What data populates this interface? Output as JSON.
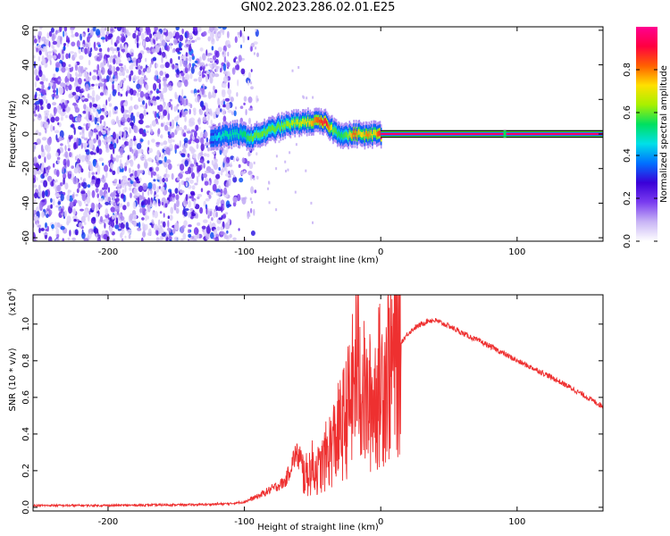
{
  "title": "GN02.2023.286.02.01.E25",
  "chart_data": [
    {
      "type": "heatmap",
      "name": "spectrogram",
      "xlabel": "Height of straight line (km)",
      "ylabel": "Frequency (Hz)",
      "xlim": [
        -255,
        163
      ],
      "ylim": [
        -62,
        62
      ],
      "xticks": [
        -200,
        -100,
        0,
        100
      ],
      "yticks": [
        -60,
        -40,
        -20,
        0,
        20,
        40,
        60
      ],
      "xtick_labels": [
        "-200",
        "-100",
        "0",
        "100"
      ],
      "ytick_labels": [
        "-60",
        "-40",
        "-20",
        "0",
        "20",
        "40",
        "60"
      ],
      "colorbar": {
        "label": "Normalized spectral amplitude",
        "range": [
          0.0,
          1.0
        ],
        "ticks": [
          0.0,
          0.2,
          0.4,
          0.6,
          0.8
        ],
        "tick_labels": [
          "0.0",
          "0.2",
          "0.4",
          "0.6",
          "0.8"
        ],
        "colors": [
          "#ffffff",
          "#c8b4f5",
          "#7a3cf0",
          "#3a00d8",
          "#0070ff",
          "#00e0e8",
          "#00e060",
          "#a8f000",
          "#ffe000",
          "#ff6000",
          "#ff0040",
          "#ff0090"
        ]
      },
      "signal_track": {
        "x": [
          -125,
          -115,
          -105,
          -95,
          -85,
          -75,
          -65,
          -55,
          -45,
          -40,
          -35,
          -30,
          -25,
          -20,
          -15,
          -10,
          -5,
          0,
          50,
          100,
          163
        ],
        "y": [
          -2,
          -1,
          0,
          -2,
          1,
          4,
          6,
          7,
          7,
          6,
          2,
          0,
          -1,
          0,
          0,
          -1,
          0,
          0,
          0,
          0,
          0
        ],
        "amplitude": [
          0.4,
          0.5,
          0.5,
          0.6,
          0.6,
          0.6,
          0.65,
          0.7,
          0.85,
          0.9,
          0.6,
          0.55,
          0.6,
          0.85,
          0.7,
          0.8,
          0.7,
          0.95,
          0.95,
          0.95,
          0.95
        ]
      },
      "noise_region": {
        "x_range": [
          -255,
          -110
        ],
        "freq_range": [
          -62,
          62
        ],
        "amplitude_range": [
          0.05,
          0.3
        ]
      }
    },
    {
      "type": "line",
      "name": "snr",
      "xlabel": "Height of straight line (km)",
      "ylabel": "SNR (10 * v/v)",
      "yscale_label": "(x10",
      "yscale_exponent": "4",
      "xlim": [
        -255,
        163
      ],
      "ylim": [
        -0.02,
        1.16
      ],
      "xticks": [
        -200,
        -100,
        0,
        100
      ],
      "yticks": [
        0.0,
        0.2,
        0.4,
        0.6,
        0.8,
        1.0
      ],
      "xtick_labels": [
        "-200",
        "-100",
        "0",
        "100"
      ],
      "ytick_labels": [
        "0.0",
        "0.2",
        "0.4",
        "0.6",
        "0.8",
        "1.0"
      ],
      "color": "#ee3030",
      "series": [
        {
          "name": "SNR",
          "x": [
            -255,
            -200,
            -130,
            -110,
            -100,
            -90,
            -80,
            -70,
            -62,
            -58,
            -55,
            -50,
            -45,
            -40,
            -35,
            -30,
            -25,
            -20,
            -17,
            -14,
            -10,
            -5,
            0,
            5,
            10,
            15,
            20,
            25,
            30,
            35,
            40,
            50,
            60,
            80,
            100,
            120,
            140,
            163
          ],
          "y": [
            0.01,
            0.01,
            0.015,
            0.02,
            0.03,
            0.06,
            0.1,
            0.14,
            0.3,
            0.2,
            0.17,
            0.22,
            0.2,
            0.28,
            0.35,
            0.42,
            0.5,
            0.65,
            0.85,
            0.65,
            0.55,
            0.6,
            0.68,
            0.75,
            0.82,
            0.9,
            0.95,
            0.98,
            1.0,
            1.02,
            1.02,
            0.99,
            0.95,
            0.88,
            0.8,
            0.73,
            0.65,
            0.55
          ]
        }
      ]
    }
  ]
}
